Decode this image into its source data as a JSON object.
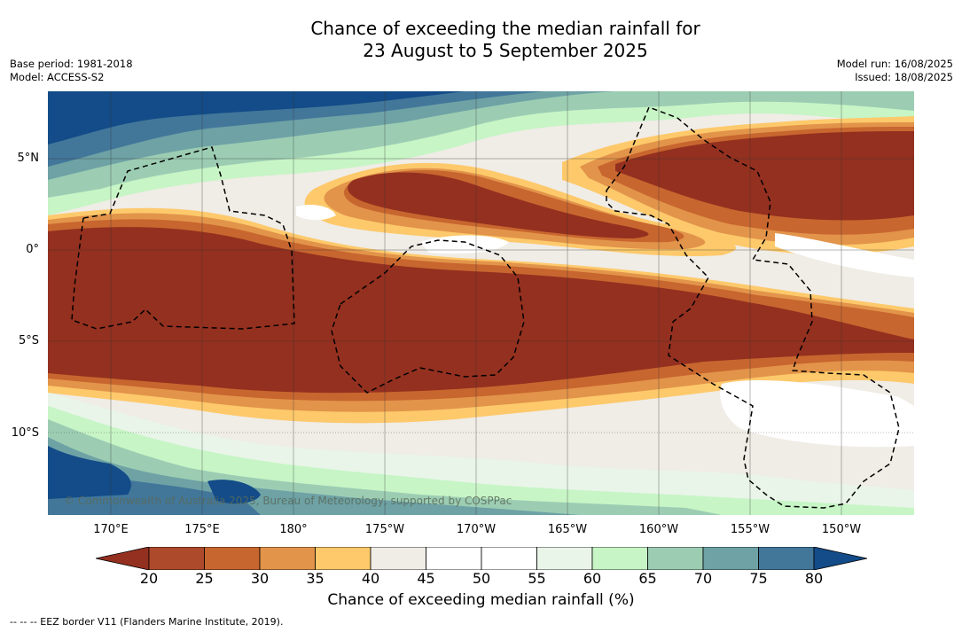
{
  "title_line1": "Chance of exceeding the median rainfall for",
  "title_line2": "23 August to 5 September 2025",
  "base_period": "Base period: 1981-2018",
  "model": "Model: ACCESS-S2",
  "model_run": "Model run: 16/08/2025",
  "issued": "Issued: 18/08/2025",
  "lat_labels": [
    "5°N",
    "0°",
    "5°S",
    "10°S"
  ],
  "lon_labels": [
    "170°E",
    "175°E",
    "180°",
    "175°W",
    "170°W",
    "165°W",
    "160°W",
    "155°W",
    "150°W"
  ],
  "copyright": "© Commonwealth of Australia 2025, Bureau of Meteorology, supported by COSPPac",
  "colorbar": {
    "ticks": [
      "20",
      "25",
      "30",
      "35",
      "40",
      "45",
      "50",
      "55",
      "60",
      "65",
      "70",
      "75",
      "80"
    ],
    "colors": [
      "#ae4a2c",
      "#c8662f",
      "#e2944a",
      "#fdc96b",
      "#f0ece6",
      "#ffffff",
      "#ffffff",
      "#e8f5e8",
      "#c7f5c6",
      "#9ccdb3",
      "#6ea2a5",
      "#42779a"
    ],
    "low_color": "#94301f",
    "high_color": "#134c88",
    "label": "Chance of exceeding median rainfall (%)"
  },
  "legend_note": "--  --  -- EEZ border V11 (Flanders Marine Institute, 2019)."
}
